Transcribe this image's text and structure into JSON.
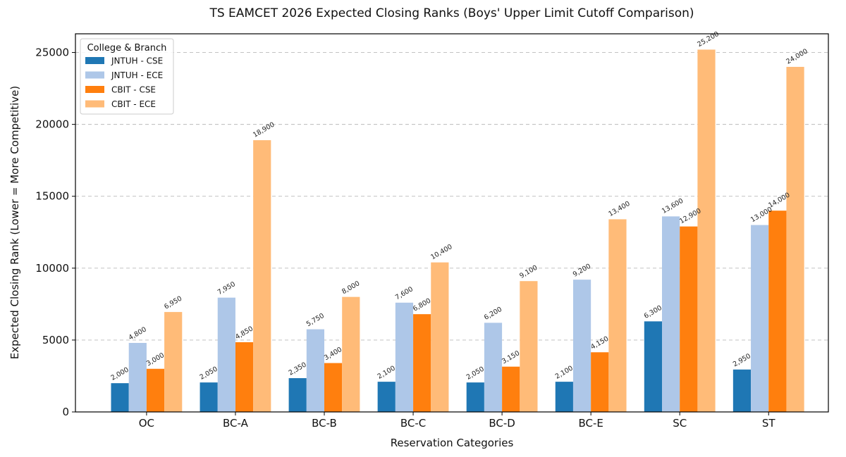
{
  "chart_data": {
    "type": "bar",
    "title": "TS EAMCET 2026 Expected Closing Ranks (Boys' Upper Limit Cutoff Comparison)",
    "xlabel": "Reservation Categories",
    "ylabel": "Expected Closing Rank (Lower = More Competitive)",
    "categories": [
      "OC",
      "BC-A",
      "BC-B",
      "BC-C",
      "BC-D",
      "BC-E",
      "SC",
      "ST"
    ],
    "ylim": [
      0,
      26300
    ],
    "yticks": [
      0,
      5000,
      10000,
      15000,
      20000,
      25000
    ],
    "grid": "y-dashed",
    "legend": {
      "title": "College & Branch",
      "placement": "top-left"
    },
    "series": [
      {
        "name": "JNTUH - CSE",
        "color": "#1f77b4",
        "values": [
          2000,
          2050,
          2350,
          2100,
          2050,
          2100,
          6300,
          2950
        ],
        "labels": [
          "2,000",
          "2,050",
          "2,350",
          "2,100",
          "2,050",
          "2,100",
          "6,300",
          "2,950"
        ]
      },
      {
        "name": "JNTUH - ECE",
        "color": "#aec7e8",
        "values": [
          4800,
          7950,
          5750,
          7600,
          6200,
          9200,
          13600,
          13000
        ],
        "labels": [
          "4,800",
          "7,950",
          "5,750",
          "7,600",
          "6,200",
          "9,200",
          "13,600",
          "13,000"
        ]
      },
      {
        "name": "CBIT - CSE",
        "color": "#ff7f0e",
        "values": [
          3000,
          4850,
          3400,
          6800,
          3150,
          4150,
          12900,
          14000
        ],
        "labels": [
          "3,000",
          "4,850",
          "3,400",
          "6,800",
          "3,150",
          "4,150",
          "12,900",
          "14,000"
        ]
      },
      {
        "name": "CBIT - ECE",
        "color": "#ffbb78",
        "values": [
          6950,
          18900,
          8000,
          10400,
          9100,
          13400,
          25200,
          24000
        ],
        "labels": [
          "6,950",
          "18,900",
          "8,000",
          "10,400",
          "9,100",
          "13,400",
          "25,200",
          "24,000"
        ]
      }
    ]
  }
}
